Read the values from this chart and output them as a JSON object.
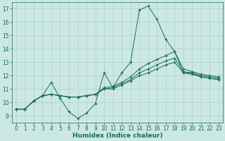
{
  "xlabel": "Humidex (Indice chaleur)",
  "background_color": "#cce8e4",
  "grid_color": "#aacfcb",
  "line_color": "#1a6b5a",
  "xlim": [
    -0.5,
    23.5
  ],
  "ylim": [
    8.5,
    17.5
  ],
  "xticks": [
    0,
    1,
    2,
    3,
    4,
    5,
    6,
    7,
    8,
    9,
    10,
    11,
    12,
    13,
    14,
    15,
    16,
    17,
    18,
    19,
    20,
    21,
    22,
    23
  ],
  "yticks": [
    9,
    10,
    11,
    12,
    13,
    14,
    15,
    16,
    17
  ],
  "lines": [
    {
      "x": [
        0,
        1,
        2,
        3,
        4,
        5,
        6,
        7,
        8,
        9,
        10,
        11,
        12,
        13,
        14,
        15,
        16,
        17,
        18,
        19,
        20,
        21,
        22,
        23
      ],
      "y": [
        9.5,
        9.5,
        10.1,
        10.5,
        11.5,
        10.3,
        9.3,
        8.8,
        9.2,
        9.9,
        12.2,
        11.1,
        12.2,
        13.0,
        16.9,
        17.2,
        16.2,
        14.7,
        13.8,
        12.2,
        12.2,
        11.9,
        11.8,
        11.7
      ]
    },
    {
      "x": [
        0,
        1,
        2,
        3,
        4,
        5,
        6,
        7,
        8,
        9,
        10,
        11,
        12,
        13,
        14,
        15,
        16,
        17,
        18,
        19,
        20,
        21,
        22,
        23
      ],
      "y": [
        9.5,
        9.5,
        10.1,
        10.5,
        10.6,
        10.5,
        10.4,
        10.4,
        10.5,
        10.6,
        11.1,
        11.2,
        11.5,
        11.9,
        12.5,
        12.9,
        13.2,
        13.5,
        13.8,
        12.5,
        12.3,
        12.1,
        12.0,
        11.9
      ]
    },
    {
      "x": [
        0,
        1,
        2,
        3,
        4,
        5,
        6,
        7,
        8,
        9,
        10,
        11,
        12,
        13,
        14,
        15,
        16,
        17,
        18,
        19,
        20,
        21,
        22,
        23
      ],
      "y": [
        9.5,
        9.5,
        10.1,
        10.5,
        10.6,
        10.5,
        10.4,
        10.4,
        10.5,
        10.6,
        11.0,
        11.1,
        11.4,
        11.7,
        12.2,
        12.5,
        12.8,
        13.1,
        13.3,
        12.3,
        12.2,
        12.0,
        11.9,
        11.8
      ]
    },
    {
      "x": [
        0,
        1,
        2,
        3,
        4,
        5,
        6,
        7,
        8,
        9,
        10,
        11,
        12,
        13,
        14,
        15,
        16,
        17,
        18,
        19,
        20,
        21,
        22,
        23
      ],
      "y": [
        9.5,
        9.5,
        10.1,
        10.5,
        10.6,
        10.5,
        10.4,
        10.4,
        10.5,
        10.6,
        11.0,
        11.0,
        11.3,
        11.6,
        12.0,
        12.2,
        12.5,
        12.8,
        13.0,
        12.2,
        12.1,
        11.9,
        11.8,
        11.7
      ]
    }
  ],
  "figsize": [
    3.2,
    2.0
  ],
  "dpi": 100,
  "xlabel_fontsize": 6.5,
  "tick_fontsize": 5.5
}
